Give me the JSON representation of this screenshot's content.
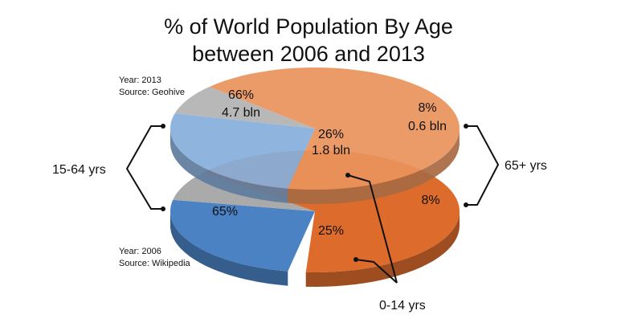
{
  "title_line1": "% of World Population By Age",
  "title_line2": "between 2006 and 2013",
  "chart_data": [
    {
      "type": "pie",
      "year_note": "Year: 2013",
      "source_note": "Source: Geohive",
      "slices": [
        {
          "category": "15-64 yrs",
          "percent": 66,
          "label": "66%",
          "value_label": "4.7 bln",
          "color": "#E9935D"
        },
        {
          "category": "0-14 yrs",
          "percent": 26,
          "label": "26%",
          "value_label": "1.8 bln",
          "color": "#86AEDA"
        },
        {
          "category": "65+ yrs",
          "percent": 8,
          "label": "8%",
          "value_label": "0.6 bln",
          "color": "#B3B3B3"
        }
      ]
    },
    {
      "type": "pie",
      "year_note": "Year: 2006",
      "source_note": "Source: Wikipedia",
      "slices": [
        {
          "category": "15-64 yrs",
          "percent": 65,
          "label": "65%",
          "color": "#DC6B2C"
        },
        {
          "category": "0-14 yrs",
          "percent": 25,
          "label": "25%",
          "color": "#4A82C4"
        },
        {
          "category": "65+ yrs",
          "percent": 8,
          "label": "8%",
          "color": "#AAAAAA"
        }
      ]
    }
  ],
  "callouts": {
    "left": "15-64 yrs",
    "right": "65+ yrs",
    "bottom": "0-14 yrs"
  }
}
